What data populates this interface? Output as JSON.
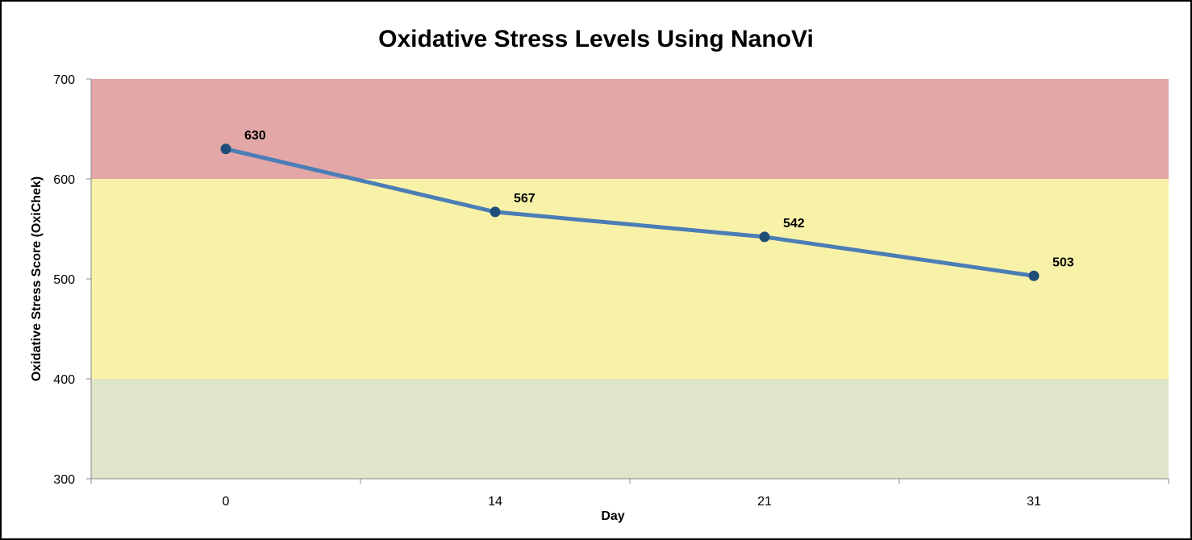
{
  "chart_data": {
    "type": "line",
    "title": "Oxidative Stress Levels Using NanoVi",
    "xlabel": "Day",
    "ylabel": "Oxidative Stress Score (OxiChek)",
    "categories": [
      "0",
      "14",
      "21",
      "31"
    ],
    "series": [
      {
        "values": [
          630,
          567,
          542,
          503
        ]
      }
    ],
    "data_labels": [
      "630",
      "567",
      "542",
      "503"
    ],
    "ylim": [
      300,
      700
    ],
    "yticks": [
      "300",
      "400",
      "500",
      "600",
      "700"
    ],
    "bands": [
      {
        "from": 600,
        "to": 700,
        "color": "#e2a7a6"
      },
      {
        "from": 400,
        "to": 600,
        "color": "#f8f2a9"
      },
      {
        "from": 300,
        "to": 400,
        "color": "#dfe5c9"
      }
    ],
    "line_color": "#4b7db6",
    "marker_color": "#1f4e79",
    "grid": false,
    "legend": "none"
  }
}
